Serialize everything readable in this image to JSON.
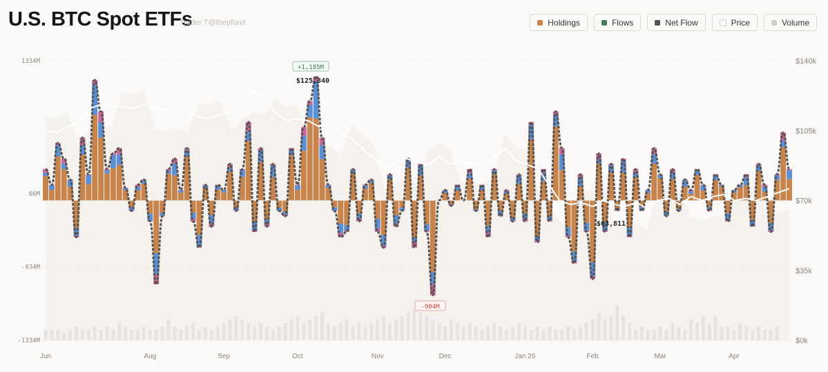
{
  "header": {
    "title": "U.S. BTC Spot ETFs",
    "subtitle": "Trader T@thepfund"
  },
  "legend": [
    {
      "label": "Holdings",
      "color": "#c8844a"
    },
    {
      "label": "Flows",
      "color": "#3f7d56"
    },
    {
      "label": "Net Flow",
      "color": "#555250"
    },
    {
      "label": "Price",
      "color": "#ffffff"
    },
    {
      "label": "Volume",
      "color": "#d2cfca"
    }
  ],
  "chart_data": {
    "type": "bar",
    "title": "U.S. BTC Spot ETFs",
    "left_axis": {
      "ticks": [
        "1334M",
        "66M",
        "-634M",
        "-1334M"
      ],
      "tick_values": [
        1334,
        66,
        -634,
        -1334
      ],
      "range": [
        -1334,
        1334
      ]
    },
    "right_axis": {
      "ticks": [
        "$140k",
        "$105k",
        "$70k",
        "$35k",
        "$0k"
      ],
      "tick_values": [
        140,
        105,
        70,
        35,
        0
      ],
      "range": [
        0,
        140
      ]
    },
    "months": [
      {
        "label": "Jun",
        "index": 0
      },
      {
        "label": "Aug",
        "index": 17
      },
      {
        "label": "Sep",
        "index": 29
      },
      {
        "label": "Oct",
        "index": 41
      },
      {
        "label": "Nov",
        "index": 54
      },
      {
        "label": "Dec",
        "index": 65
      },
      {
        "label": "Jan 26",
        "index": 78
      },
      {
        "label": "Feb",
        "index": 89
      },
      {
        "label": "Mar",
        "index": 100
      },
      {
        "label": "Apr",
        "index": 112
      }
    ],
    "net_flow_millions": [
      300,
      150,
      550,
      400,
      200,
      -350,
      600,
      250,
      1150,
      850,
      300,
      450,
      500,
      120,
      -100,
      150,
      200,
      -200,
      -800,
      -150,
      300,
      400,
      100,
      500,
      -200,
      -450,
      150,
      -250,
      150,
      100,
      350,
      -100,
      300,
      750,
      -300,
      500,
      -250,
      350,
      -100,
      -150,
      500,
      150,
      700,
      950,
      1185,
      600,
      150,
      -100,
      -350,
      -300,
      300,
      -200,
      150,
      200,
      -300,
      -450,
      250,
      -250,
      -100,
      400,
      -450,
      350,
      -300,
      -904,
      0,
      100,
      -50,
      150,
      0,
      300,
      -100,
      150,
      -350,
      300,
      -150,
      100,
      -200,
      250,
      -200,
      750,
      -400,
      300,
      -200,
      850,
      500,
      -350,
      -600,
      250,
      -300,
      -750,
      450,
      -300,
      350,
      -100,
      400,
      -350,
      300,
      -100,
      100,
      500,
      250,
      -150,
      300,
      -100,
      200,
      100,
      300,
      150,
      -100,
      250,
      150,
      -200,
      100,
      150,
      250,
      -250,
      350,
      150,
      -300,
      250,
      650,
      300
    ],
    "price_k": [
      105,
      104,
      107,
      109,
      116,
      118,
      117,
      117,
      116,
      118,
      116,
      115,
      117,
      114,
      112,
      111,
      113,
      115,
      121,
      125,
      123,
      114,
      110,
      111,
      110,
      107,
      108,
      103,
      101,
      96,
      91,
      86,
      89,
      91,
      89,
      88,
      92,
      88,
      90,
      88,
      89,
      92,
      96,
      90,
      88,
      86,
      78,
      70,
      68,
      69,
      67,
      70,
      68,
      67,
      69,
      66,
      70,
      71,
      68,
      72,
      70,
      72,
      73,
      70,
      71,
      70,
      72,
      74,
      76
    ],
    "volume_rel": [
      3,
      3,
      3,
      2,
      3,
      4,
      3,
      3,
      4,
      3,
      4,
      3,
      5,
      4,
      3,
      3,
      4,
      3,
      3,
      4,
      6,
      4,
      3,
      4,
      5,
      3,
      4,
      3,
      4,
      5,
      6,
      7,
      6,
      5,
      4,
      5,
      4,
      3,
      4,
      5,
      6,
      7,
      5,
      6,
      7,
      8,
      5,
      4,
      5,
      6,
      4,
      5,
      4,
      5,
      6,
      7,
      5,
      6,
      7,
      8,
      9,
      8,
      7,
      6,
      5,
      4,
      6,
      5,
      4,
      5,
      4,
      3,
      4,
      5,
      4,
      3,
      4,
      5,
      4,
      3,
      4,
      3,
      4,
      3,
      3,
      4,
      3,
      4,
      5,
      6,
      8,
      6,
      7,
      10,
      7,
      5,
      3,
      4,
      3,
      3,
      4,
      3,
      5,
      4,
      3,
      6,
      5,
      7,
      5,
      7,
      4,
      4,
      3,
      5,
      4,
      3,
      4,
      3,
      3,
      4
    ],
    "annotations": {
      "max_flow": "+1,185M",
      "max_price": "$125,340",
      "min_flow": "-904M",
      "min_price": "$63,811"
    }
  }
}
